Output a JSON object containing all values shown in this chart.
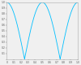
{
  "xlim": [
    0,
    1
  ],
  "ylim": [
    0,
    1
  ],
  "xticks": [
    0.0,
    0.1,
    0.2,
    0.3,
    0.4,
    0.5,
    0.6,
    0.7,
    0.8,
    0.9,
    1.0
  ],
  "yticks": [
    0.1,
    0.2,
    0.3,
    0.4,
    0.5,
    0.6,
    0.7,
    0.8,
    0.9,
    1.0
  ],
  "line_color": "#00bfff",
  "background_color": "#f0f0f0",
  "linewidth": 0.6,
  "n_points": 2000
}
